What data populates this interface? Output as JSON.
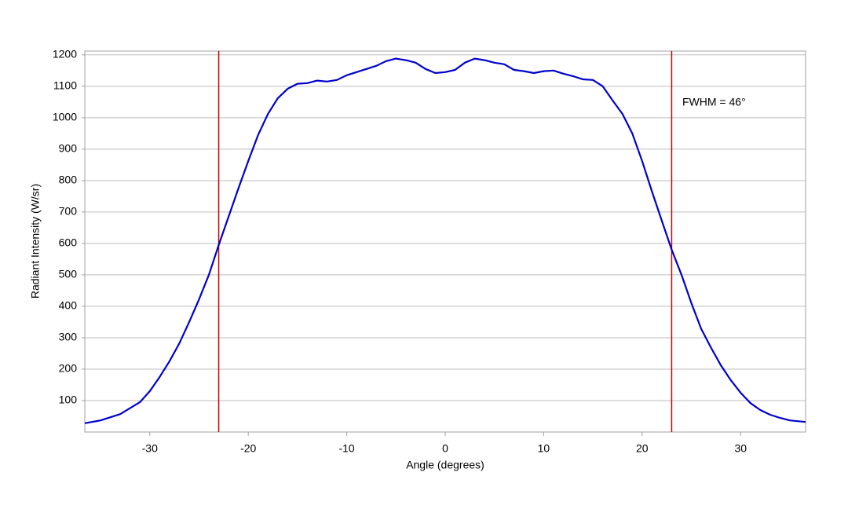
{
  "chart_data": {
    "type": "line",
    "x_label": "Angle (degrees)",
    "y_label": "Radiant Intensity (W/sr)",
    "annotation": "FWHM = 46°",
    "xlim": [
      -36.6,
      36.6
    ],
    "ylim": [
      0,
      1212
    ],
    "xticks": [
      -30,
      -20,
      -10,
      0,
      10,
      20,
      30
    ],
    "yticks": [
      100,
      200,
      300,
      400,
      500,
      600,
      700,
      800,
      900,
      1000,
      1100,
      1200
    ],
    "grid": true,
    "vlines": {
      "values": [
        -23,
        23
      ],
      "color": "#cc0000"
    },
    "x": [
      -36.6,
      -35,
      -33,
      -31,
      -30,
      -29,
      -28,
      -27,
      -26,
      -25,
      -24,
      -23,
      -22,
      -21,
      -20,
      -19,
      -18,
      -17,
      -16,
      -15,
      -14,
      -13,
      -12,
      -11,
      -10,
      -9,
      -8,
      -7,
      -6,
      -5,
      -4,
      -3,
      -2,
      -1,
      0,
      1,
      2,
      3,
      4,
      5,
      6,
      7,
      8,
      9,
      10,
      11,
      12,
      13,
      14,
      15,
      16,
      17,
      18,
      19,
      20,
      21,
      22,
      23,
      24,
      25,
      26,
      27,
      28,
      29,
      30,
      31,
      32,
      33,
      34,
      35,
      36.6
    ],
    "series": [
      {
        "color": "#0000cc",
        "values": [
          28,
          37,
          57,
          95,
          130,
          175,
          225,
          282,
          350,
          422,
          500,
          595,
          685,
          775,
          862,
          945,
          1012,
          1062,
          1092,
          1108,
          1110,
          1118,
          1115,
          1120,
          1135,
          1145,
          1155,
          1165,
          1180,
          1188,
          1183,
          1175,
          1155,
          1142,
          1145,
          1152,
          1175,
          1188,
          1183,
          1175,
          1170,
          1152,
          1148,
          1142,
          1148,
          1150,
          1140,
          1132,
          1122,
          1120,
          1100,
          1055,
          1012,
          950,
          862,
          765,
          672,
          580,
          500,
          410,
          328,
          268,
          212,
          165,
          125,
          92,
          70,
          55,
          45,
          37,
          32
        ]
      }
    ]
  }
}
